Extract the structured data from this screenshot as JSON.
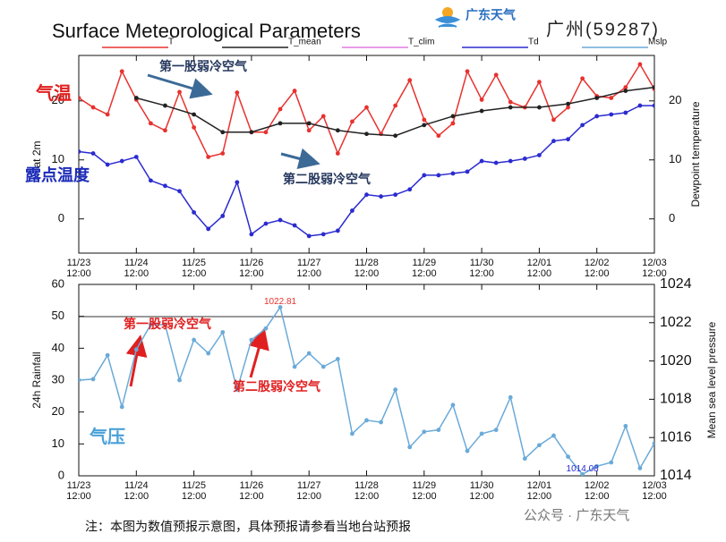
{
  "title": "Surface Meteorological Parameters",
  "logo_text": "广东天气",
  "station": "广州(59287)",
  "footnote": "注：本图为数值预报示意图，具体预报请参看当地台站预报",
  "watermark": "公众号 · 广东天气",
  "annotations": {
    "temp": "气温",
    "dewpoint": "露点温度",
    "first_top": "第一股弱冷空气",
    "second_top": "第二股弱冷空气",
    "pressure": "气压",
    "first_bottom": "第一股弱冷空气",
    "second_bottom": "第二股弱冷空气"
  },
  "chart_data": [
    {
      "type": "line",
      "ylabel": "at 2m",
      "y2label": "Dewpoint temperature",
      "xlim": [
        0,
        240
      ],
      "xticks": [
        {
          "value": 0,
          "label": "11/23\n12:00"
        },
        {
          "value": 24,
          "label": "11/24\n12:00"
        },
        {
          "value": 48,
          "label": "11/25\n12:00"
        },
        {
          "value": 72,
          "label": "11/26\n12:00"
        },
        {
          "value": 96,
          "label": "11/27\n12:00"
        },
        {
          "value": 120,
          "label": "11/28\n12:00"
        },
        {
          "value": 144,
          "label": "11/29\n12:00"
        },
        {
          "value": 168,
          "label": "11/30\n12:00"
        },
        {
          "value": 192,
          "label": "12/01\n12:00"
        },
        {
          "value": 216,
          "label": "12/02\n12:00"
        },
        {
          "value": 240,
          "label": "12/03\n12:00"
        }
      ],
      "ylim": [
        -5.8,
        27.7
      ],
      "yticks": [
        0,
        10,
        20
      ],
      "y2lim": [
        -5.8,
        27.7
      ],
      "y2ticks": [
        0,
        10,
        20
      ],
      "series": [
        {
          "name": "T",
          "color": "#e8322f",
          "markers": true,
          "x": [
            0,
            6,
            12,
            18,
            24,
            30,
            36,
            42,
            48,
            54,
            60,
            66,
            72,
            78,
            84,
            90,
            96,
            102,
            108,
            114,
            120,
            126,
            132,
            138,
            144,
            150,
            156,
            162,
            168,
            174,
            180,
            186,
            192,
            198,
            204,
            210,
            216,
            222,
            228,
            234,
            240
          ],
          "values": [
            20.5,
            18.9,
            17.7,
            25.0,
            20.2,
            16.2,
            15.0,
            21.5,
            15.5,
            10.5,
            11.1,
            21.4,
            14.7,
            14.7,
            18.6,
            21.7,
            15.0,
            17.4,
            11.1,
            16.5,
            18.9,
            14.4,
            19.2,
            23.5,
            16.8,
            14.1,
            16.2,
            25.0,
            20.2,
            24.4,
            19.8,
            18.9,
            23.2,
            16.8,
            18.9,
            23.8,
            20.8,
            20.5,
            22.3,
            26.2,
            22.0
          ]
        },
        {
          "name": "T_mean",
          "color": "#222222",
          "markers": true,
          "x": [
            24,
            36,
            48,
            60,
            72,
            84,
            96,
            108,
            120,
            132,
            144,
            156,
            168,
            180,
            192,
            204,
            216,
            228,
            240
          ],
          "values": [
            20.5,
            19.2,
            17.7,
            14.7,
            14.7,
            16.2,
            16.2,
            15.0,
            14.4,
            14.1,
            15.9,
            17.4,
            18.3,
            18.9,
            18.9,
            19.5,
            20.5,
            21.7,
            22.3
          ]
        },
        {
          "name": "T_clim",
          "color": "#e07be0",
          "markers": false,
          "x": [],
          "values": []
        },
        {
          "name": "Td",
          "color": "#2b2bd0",
          "markers": true,
          "axis": "y2",
          "x": [
            0,
            6,
            12,
            18,
            24,
            30,
            36,
            42,
            48,
            54,
            60,
            66,
            72,
            78,
            84,
            90,
            96,
            102,
            108,
            114,
            120,
            126,
            132,
            138,
            144,
            150,
            156,
            162,
            168,
            174,
            180,
            186,
            192,
            198,
            204,
            210,
            216,
            222,
            228,
            234,
            240
          ],
          "values": [
            11.4,
            11.1,
            9.2,
            9.8,
            10.5,
            6.5,
            5.6,
            4.7,
            1.1,
            -1.7,
            0.5,
            6.2,
            -2.6,
            -0.8,
            -0.2,
            -1.1,
            -2.9,
            -2.6,
            -2.0,
            1.4,
            4.1,
            3.8,
            4.1,
            5.0,
            7.4,
            7.4,
            7.7,
            8.0,
            9.8,
            9.5,
            9.8,
            10.2,
            10.8,
            13.2,
            13.5,
            15.9,
            17.4,
            17.7,
            18.0,
            19.2,
            19.2
          ]
        }
      ]
    },
    {
      "type": "line",
      "ylabel": "24h Rainfall",
      "y2label": "Mean sea level pressure",
      "xlim": [
        0,
        240
      ],
      "xticks": [
        {
          "value": 0,
          "label": "11/23\n12:00"
        },
        {
          "value": 24,
          "label": "11/24\n12:00"
        },
        {
          "value": 48,
          "label": "11/25\n12:00"
        },
        {
          "value": 72,
          "label": "11/26\n12:00"
        },
        {
          "value": 96,
          "label": "11/27\n12:00"
        },
        {
          "value": 120,
          "label": "11/28\n12:00"
        },
        {
          "value": 144,
          "label": "11/29\n12:00"
        },
        {
          "value": 168,
          "label": "11/30\n12:00"
        },
        {
          "value": 192,
          "label": "12/01\n12:00"
        },
        {
          "value": 216,
          "label": "12/02\n12:00"
        },
        {
          "value": 240,
          "label": "12/03\n12:00"
        }
      ],
      "ylim": [
        0,
        60
      ],
      "yticks": [
        0,
        10,
        20,
        30,
        40,
        50,
        60
      ],
      "y2lim": [
        1014,
        1024
      ],
      "y2ticks": [
        1014,
        1016,
        1018,
        1020,
        1022,
        1024
      ],
      "series": [
        {
          "name": "Mslp",
          "color": "#6aaad8",
          "markers": true,
          "axis": "y2",
          "x": [
            0,
            6,
            12,
            18,
            24,
            30,
            36,
            42,
            48,
            54,
            60,
            66,
            72,
            78,
            84,
            90,
            96,
            102,
            108,
            114,
            120,
            126,
            132,
            138,
            144,
            150,
            156,
            162,
            168,
            174,
            180,
            186,
            192,
            198,
            204,
            210,
            216,
            222,
            228,
            234,
            240
          ],
          "values": [
            1019.0,
            1019.05,
            1020.3,
            1017.6,
            1020.6,
            1021.9,
            1021.9,
            1019.0,
            1021.1,
            1020.4,
            1021.5,
            1018.5,
            1021.1,
            1021.7,
            1022.81,
            1019.7,
            1020.4,
            1019.7,
            1020.1,
            1016.2,
            1016.9,
            1016.8,
            1018.5,
            1015.5,
            1016.3,
            1016.4,
            1017.7,
            1015.3,
            1016.2,
            1016.4,
            1018.1,
            1014.9,
            1015.6,
            1016.1,
            1015.0,
            1014.08,
            1014.5,
            1014.7,
            1016.6,
            1014.4,
            1015.7
          ],
          "value_labels": [
            null,
            null,
            null,
            null,
            null,
            null,
            null,
            null,
            null,
            null,
            null,
            null,
            null,
            null,
            "1022.81",
            null,
            null,
            null,
            null,
            null,
            null,
            null,
            null,
            null,
            null,
            null,
            null,
            null,
            null,
            null,
            null,
            null,
            null,
            null,
            null,
            "1014.08",
            null,
            null,
            null,
            null,
            null
          ],
          "value_label_colors": [
            null,
            null,
            null,
            null,
            null,
            null,
            null,
            null,
            null,
            null,
            null,
            null,
            null,
            null,
            "#e8322f",
            null,
            null,
            null,
            null,
            null,
            null,
            null,
            null,
            null,
            null,
            null,
            null,
            null,
            null,
            null,
            null,
            null,
            null,
            null,
            null,
            "#2b2bd0",
            null,
            null,
            null,
            null,
            null
          ]
        }
      ]
    }
  ]
}
